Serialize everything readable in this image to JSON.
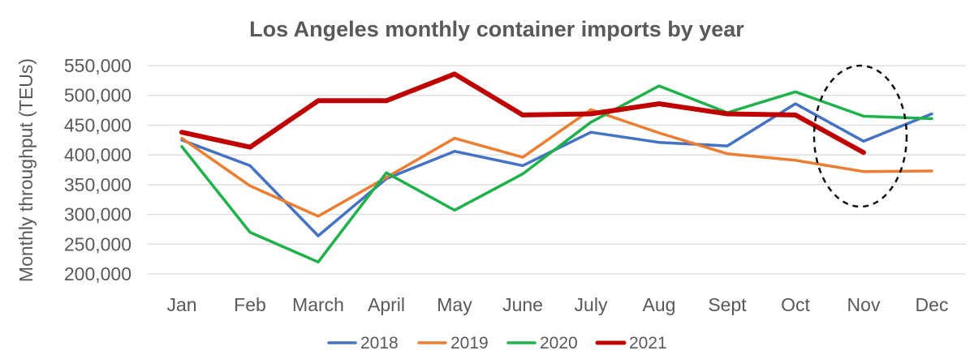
{
  "chart_data": {
    "type": "line",
    "title": "Los Angeles monthly container imports by year",
    "xlabel": "",
    "ylabel": "Monthly throughput (TEUs)",
    "ylim": [
      200000,
      550000
    ],
    "yticks": [
      200000,
      250000,
      300000,
      350000,
      400000,
      450000,
      500000,
      550000
    ],
    "ytick_labels": [
      "200,000",
      "250,000",
      "300,000",
      "350,000",
      "400,000",
      "450,000",
      "500,000",
      "550,000"
    ],
    "categories": [
      "Jan",
      "Feb",
      "March",
      "April",
      "May",
      "June",
      "July",
      "Aug",
      "Sept",
      "Oct",
      "Nov",
      "Dec"
    ],
    "grid": true,
    "legend_position": "bottom",
    "series": [
      {
        "name": "2018",
        "color": "#4472C4",
        "width": 3.5,
        "values": [
          425000,
          382000,
          264000,
          360000,
          406000,
          382000,
          438000,
          421000,
          415000,
          486000,
          423000,
          469000
        ]
      },
      {
        "name": "2019",
        "color": "#ED7D31",
        "width": 3.5,
        "values": [
          428000,
          348000,
          297000,
          362000,
          428000,
          396000,
          476000,
          437000,
          402000,
          391000,
          372000,
          373000
        ]
      },
      {
        "name": "2020",
        "color": "#1DB24A",
        "width": 3.5,
        "values": [
          414000,
          270000,
          220000,
          370000,
          307000,
          368000,
          455000,
          516000,
          471000,
          506000,
          465000,
          461000
        ]
      },
      {
        "name": "2021",
        "color": "#C00000",
        "width": 6,
        "values": [
          438000,
          413000,
          491000,
          491000,
          536000,
          467000,
          469000,
          486000,
          469000,
          467000,
          404000,
          null
        ]
      }
    ],
    "annotations": [
      {
        "type": "dashed-ellipse",
        "around": "Nov"
      }
    ]
  }
}
